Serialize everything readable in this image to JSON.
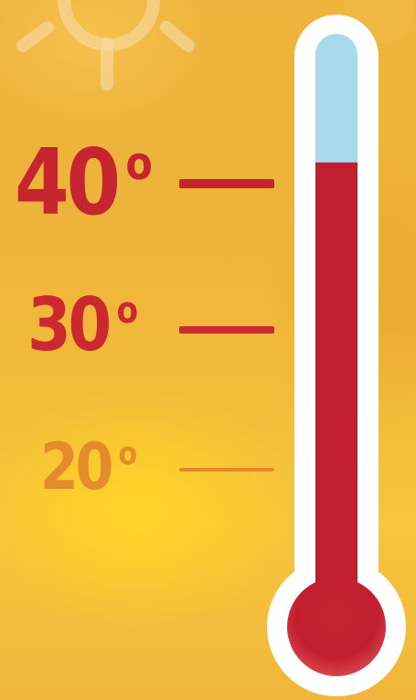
{
  "scale": {
    "labels": [
      {
        "value": "40",
        "unit": "o"
      },
      {
        "value": "30",
        "unit": "o"
      },
      {
        "value": "20",
        "unit": "o"
      }
    ]
  },
  "thermometer": {
    "reading_fraction": 0.78,
    "fill_color": "#c11f2d",
    "empty_color": "#a9d9ec",
    "frame_color": "#ffffff"
  },
  "colors": {
    "background": "#f0b63b",
    "label_hot": "#c6242f",
    "label_warm": "#e3892c",
    "sun_rays": "#f7d9a2"
  },
  "icons": [
    "sun-icon",
    "thermometer-icon"
  ]
}
